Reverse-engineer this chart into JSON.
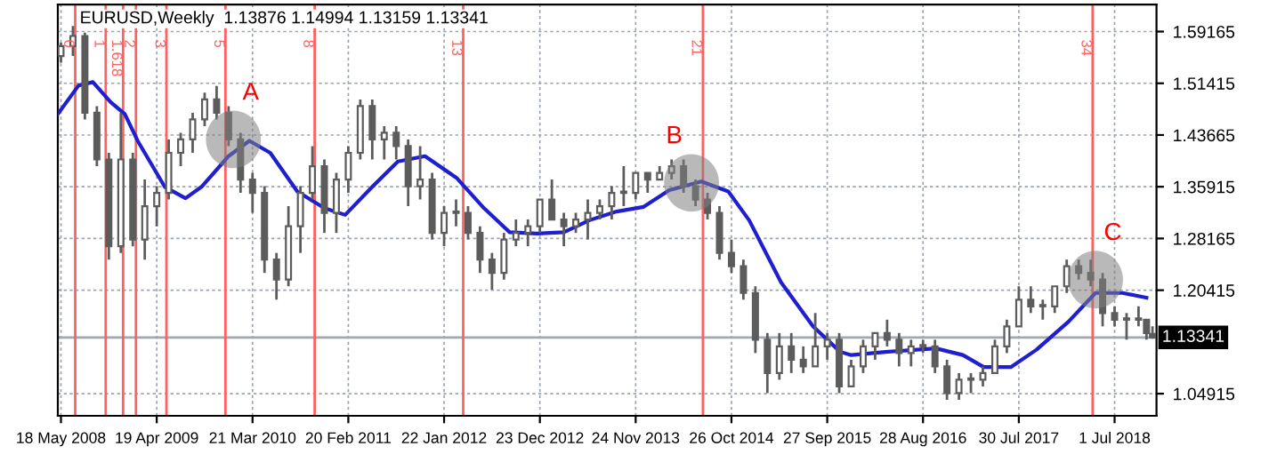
{
  "chart_data": {
    "type": "candlestick",
    "title": "EURUSD,Weekly  1.13876 1.14994 1.13159 1.13341",
    "color": "#5c5c5c",
    "x": [
      "2008-05-18",
      "2008-06-29",
      "2008-08-10",
      "2008-09-21",
      "2008-11-02",
      "2008-12-14",
      "2009-01-25",
      "2009-03-08",
      "2009-04-19",
      "2009-05-31",
      "2009-07-12",
      "2009-08-23",
      "2009-10-04",
      "2009-11-15",
      "2009-12-27",
      "2010-02-07",
      "2010-03-21",
      "2010-05-02",
      "2010-06-13",
      "2010-07-25",
      "2010-09-05",
      "2010-10-17",
      "2010-11-28",
      "2011-01-09",
      "2011-02-20",
      "2011-04-03",
      "2011-05-15",
      "2011-06-26",
      "2011-08-07",
      "2011-09-18",
      "2011-10-30",
      "2011-12-11",
      "2012-01-22",
      "2012-03-04",
      "2012-04-15",
      "2012-05-27",
      "2012-07-08",
      "2012-08-19",
      "2012-09-30",
      "2012-11-11",
      "2012-12-23",
      "2013-02-03",
      "2013-03-17",
      "2013-04-28",
      "2013-06-09",
      "2013-07-21",
      "2013-09-01",
      "2013-10-13",
      "2013-11-24",
      "2014-01-05",
      "2014-02-16",
      "2014-03-30",
      "2014-05-11",
      "2014-06-22",
      "2014-08-03",
      "2014-09-14",
      "2014-10-26",
      "2014-12-07",
      "2015-01-18",
      "2015-03-01",
      "2015-04-12",
      "2015-05-24",
      "2015-07-05",
      "2015-08-16",
      "2015-09-27",
      "2015-11-08",
      "2015-12-20",
      "2016-01-31",
      "2016-03-13",
      "2016-04-24",
      "2016-06-05",
      "2016-07-17",
      "2016-08-28",
      "2016-10-09",
      "2016-11-20",
      "2017-01-01",
      "2017-02-12",
      "2017-03-26",
      "2017-05-07",
      "2017-06-18",
      "2017-07-30",
      "2017-09-10",
      "2017-10-22",
      "2017-12-03",
      "2018-01-14",
      "2018-02-25",
      "2018-04-08",
      "2018-05-20",
      "2018-07-01",
      "2018-08-12",
      "2018-09-23",
      "2018-10-21",
      "2018-11-11"
    ],
    "ohlc": [
      [
        1.555,
        1.575,
        1.545,
        1.57
      ],
      [
        1.57,
        1.6,
        1.555,
        1.585
      ],
      [
        1.585,
        1.59,
        1.46,
        1.47
      ],
      [
        1.47,
        1.48,
        1.39,
        1.4
      ],
      [
        1.4,
        1.41,
        1.25,
        1.27
      ],
      [
        1.27,
        1.47,
        1.26,
        1.4
      ],
      [
        1.4,
        1.41,
        1.27,
        1.28
      ],
      [
        1.28,
        1.37,
        1.25,
        1.33
      ],
      [
        1.33,
        1.36,
        1.3,
        1.35
      ],
      [
        1.35,
        1.43,
        1.34,
        1.41
      ],
      [
        1.41,
        1.44,
        1.39,
        1.43
      ],
      [
        1.43,
        1.47,
        1.41,
        1.46
      ],
      [
        1.46,
        1.5,
        1.45,
        1.49
      ],
      [
        1.49,
        1.51,
        1.46,
        1.47
      ],
      [
        1.47,
        1.48,
        1.42,
        1.43
      ],
      [
        1.43,
        1.44,
        1.35,
        1.37
      ],
      [
        1.37,
        1.38,
        1.32,
        1.35
      ],
      [
        1.35,
        1.36,
        1.23,
        1.25
      ],
      [
        1.25,
        1.26,
        1.19,
        1.22
      ],
      [
        1.22,
        1.33,
        1.21,
        1.3
      ],
      [
        1.3,
        1.36,
        1.26,
        1.35
      ],
      [
        1.35,
        1.42,
        1.34,
        1.39
      ],
      [
        1.39,
        1.4,
        1.29,
        1.32
      ],
      [
        1.32,
        1.38,
        1.29,
        1.37
      ],
      [
        1.37,
        1.42,
        1.35,
        1.41
      ],
      [
        1.41,
        1.49,
        1.4,
        1.48
      ],
      [
        1.48,
        1.49,
        1.4,
        1.43
      ],
      [
        1.43,
        1.45,
        1.4,
        1.44
      ],
      [
        1.44,
        1.45,
        1.4,
        1.42
      ],
      [
        1.42,
        1.43,
        1.33,
        1.36
      ],
      [
        1.36,
        1.42,
        1.34,
        1.37
      ],
      [
        1.37,
        1.38,
        1.28,
        1.29
      ],
      [
        1.29,
        1.33,
        1.27,
        1.32
      ],
      [
        1.32,
        1.34,
        1.3,
        1.32
      ],
      [
        1.32,
        1.33,
        1.28,
        1.29
      ],
      [
        1.29,
        1.3,
        1.23,
        1.25
      ],
      [
        1.25,
        1.26,
        1.205,
        1.23
      ],
      [
        1.23,
        1.29,
        1.22,
        1.28
      ],
      [
        1.28,
        1.31,
        1.27,
        1.29
      ],
      [
        1.29,
        1.31,
        1.27,
        1.3
      ],
      [
        1.3,
        1.34,
        1.29,
        1.34
      ],
      [
        1.34,
        1.37,
        1.31,
        1.31
      ],
      [
        1.31,
        1.32,
        1.27,
        1.3
      ],
      [
        1.3,
        1.32,
        1.29,
        1.31
      ],
      [
        1.31,
        1.34,
        1.28,
        1.32
      ],
      [
        1.32,
        1.34,
        1.31,
        1.33
      ],
      [
        1.33,
        1.36,
        1.31,
        1.35
      ],
      [
        1.35,
        1.39,
        1.33,
        1.35
      ],
      [
        1.35,
        1.38,
        1.34,
        1.38
      ],
      [
        1.38,
        1.38,
        1.35,
        1.37
      ],
      [
        1.37,
        1.39,
        1.37,
        1.38
      ],
      [
        1.38,
        1.4,
        1.37,
        1.39
      ],
      [
        1.39,
        1.4,
        1.35,
        1.36
      ],
      [
        1.36,
        1.37,
        1.33,
        1.34
      ],
      [
        1.34,
        1.35,
        1.31,
        1.32
      ],
      [
        1.32,
        1.33,
        1.25,
        1.26
      ],
      [
        1.26,
        1.28,
        1.23,
        1.24
      ],
      [
        1.24,
        1.25,
        1.19,
        1.2
      ],
      [
        1.2,
        1.21,
        1.11,
        1.13
      ],
      [
        1.13,
        1.14,
        1.05,
        1.08
      ],
      [
        1.08,
        1.14,
        1.07,
        1.12
      ],
      [
        1.12,
        1.14,
        1.08,
        1.1
      ],
      [
        1.1,
        1.12,
        1.08,
        1.09
      ],
      [
        1.09,
        1.17,
        1.09,
        1.12
      ],
      [
        1.12,
        1.14,
        1.1,
        1.13
      ],
      [
        1.13,
        1.14,
        1.05,
        1.06
      ],
      [
        1.06,
        1.1,
        1.06,
        1.09
      ],
      [
        1.09,
        1.13,
        1.08,
        1.12
      ],
      [
        1.12,
        1.14,
        1.1,
        1.14
      ],
      [
        1.14,
        1.16,
        1.12,
        1.13
      ],
      [
        1.13,
        1.14,
        1.09,
        1.11
      ],
      [
        1.11,
        1.13,
        1.09,
        1.12
      ],
      [
        1.12,
        1.13,
        1.11,
        1.12
      ],
      [
        1.12,
        1.13,
        1.08,
        1.09
      ],
      [
        1.09,
        1.1,
        1.04,
        1.05
      ],
      [
        1.05,
        1.08,
        1.04,
        1.07
      ],
      [
        1.07,
        1.08,
        1.05,
        1.07
      ],
      [
        1.07,
        1.09,
        1.06,
        1.08
      ],
      [
        1.08,
        1.13,
        1.08,
        1.12
      ],
      [
        1.12,
        1.16,
        1.11,
        1.15
      ],
      [
        1.15,
        1.21,
        1.15,
        1.19
      ],
      [
        1.19,
        1.21,
        1.17,
        1.18
      ],
      [
        1.18,
        1.19,
        1.16,
        1.18
      ],
      [
        1.18,
        1.21,
        1.17,
        1.21
      ],
      [
        1.21,
        1.25,
        1.2,
        1.24
      ],
      [
        1.24,
        1.25,
        1.22,
        1.23
      ],
      [
        1.23,
        1.25,
        1.21,
        1.22
      ],
      [
        1.22,
        1.23,
        1.15,
        1.17
      ],
      [
        1.17,
        1.18,
        1.15,
        1.16
      ],
      [
        1.16,
        1.17,
        1.13,
        1.16
      ],
      [
        1.16,
        1.18,
        1.15,
        1.16
      ],
      [
        1.16,
        1.16,
        1.13,
        1.14
      ],
      [
        1.13876,
        1.14994,
        1.13159,
        1.13341
      ]
    ],
    "series": [
      {
        "type": "line",
        "color": "#1f1fd0",
        "x": [
          "2008-05-07",
          "2008-07-19",
          "2008-09-07",
          "2008-11-08",
          "2008-12-28",
          "2009-02-11",
          "2009-05-17",
          "2009-07-29",
          "2009-09-23",
          "2009-12-27",
          "2010-03-10",
          "2010-05-22",
          "2010-08-25",
          "2010-11-28",
          "2011-02-09",
          "2011-05-15",
          "2011-08-13",
          "2011-11-16",
          "2012-03-07",
          "2012-06-10",
          "2012-09-08",
          "2012-12-12",
          "2013-03-17",
          "2013-06-15",
          "2013-09-18",
          "2013-12-22",
          "2014-03-22",
          "2014-07-12",
          "2014-10-15",
          "2014-12-27",
          "2015-04-18",
          "2015-08-08",
          "2015-11-11",
          "2015-12-20",
          "2016-04-27",
          "2016-10-12",
          "2017-01-15",
          "2017-03-29",
          "2017-07-02",
          "2017-09-30",
          "2018-01-20",
          "2018-04-25",
          "2018-07-29",
          "2018-10-21"
        ],
        "values": [
          1.468,
          1.511,
          1.516,
          1.486,
          1.468,
          1.428,
          1.359,
          1.342,
          1.359,
          1.405,
          1.428,
          1.41,
          1.352,
          1.327,
          1.317,
          1.359,
          1.397,
          1.405,
          1.372,
          1.327,
          1.291,
          1.289,
          1.291,
          1.309,
          1.322,
          1.329,
          1.354,
          1.367,
          1.352,
          1.309,
          1.216,
          1.15,
          1.112,
          1.107,
          1.112,
          1.117,
          1.107,
          1.089,
          1.089,
          1.115,
          1.157,
          1.2,
          1.2,
          1.193
        ]
      }
    ],
    "xlim": [
      "2008-05-07",
      "2018-11-25"
    ],
    "xticks": [
      {
        "value": "2008-05-18",
        "label": "18 May 2008"
      },
      {
        "value": "2009-04-19",
        "label": "19 Apr 2009"
      },
      {
        "value": "2010-03-21",
        "label": "21 Mar 2010"
      },
      {
        "value": "2011-02-20",
        "label": "20 Feb 2011"
      },
      {
        "value": "2012-01-22",
        "label": "22 Jan 2012"
      },
      {
        "value": "2012-12-23",
        "label": "23 Dec 2012"
      },
      {
        "value": "2013-11-24",
        "label": "24 Nov 2013"
      },
      {
        "value": "2014-10-26",
        "label": "26 Oct 2014"
      },
      {
        "value": "2015-09-27",
        "label": "27 Sep 2015"
      },
      {
        "value": "2016-08-28",
        "label": "28 Aug 2016"
      },
      {
        "value": "2017-07-30",
        "label": "30 Jul 2017"
      },
      {
        "value": "2018-07-01",
        "label": "1 Jul 2018"
      }
    ],
    "ylim": [
      1.016,
      1.632
    ],
    "yticks": [
      {
        "value": 1.04915,
        "label": "1.04915"
      },
      {
        "value": 1.20415,
        "label": "1.20415"
      },
      {
        "value": 1.28165,
        "label": "1.28165"
      },
      {
        "value": 1.35915,
        "label": "1.35915"
      },
      {
        "value": 1.43665,
        "label": "1.43665"
      },
      {
        "value": 1.51415,
        "label": "1.51415"
      },
      {
        "value": 1.59165,
        "label": "1.59165"
      }
    ],
    "grid": true,
    "ref_lines": [
      {
        "axis": "y",
        "value": 1.13341,
        "label": "1.13341",
        "color": "#a0a8b0"
      },
      {
        "axis": "x",
        "value": "2008-07-07",
        "label": "0",
        "color": "#ff6060"
      },
      {
        "axis": "x",
        "value": "2008-10-22",
        "label": "1",
        "color": "#ff6060"
      },
      {
        "axis": "x",
        "value": "2008-12-22",
        "label": "1.618",
        "color": "#ff6060"
      },
      {
        "axis": "x",
        "value": "2009-02-05",
        "label": "2",
        "color": "#ff6060"
      },
      {
        "axis": "x",
        "value": "2009-05-23",
        "label": "3",
        "color": "#ff6060"
      },
      {
        "axis": "x",
        "value": "2009-12-16",
        "label": "5",
        "color": "#ff6060"
      },
      {
        "axis": "x",
        "value": "2010-10-25",
        "label": "8",
        "color": "#ff6060"
      },
      {
        "axis": "x",
        "value": "2012-03-29",
        "label": "13",
        "color": "#ff6060"
      },
      {
        "axis": "x",
        "value": "2014-07-18",
        "label": "21",
        "color": "#ff6060"
      },
      {
        "axis": "x",
        "value": "2018-04-15",
        "label": "34",
        "color": "#ff6060"
      }
    ],
    "annotations": [
      {
        "text": "A",
        "x": "2010-01-13",
        "y": 1.43
      },
      {
        "text": "B",
        "x": "2014-06-08",
        "y": 1.365
      },
      {
        "text": "C",
        "x": "2018-04-25",
        "y": 1.22
      }
    ]
  }
}
